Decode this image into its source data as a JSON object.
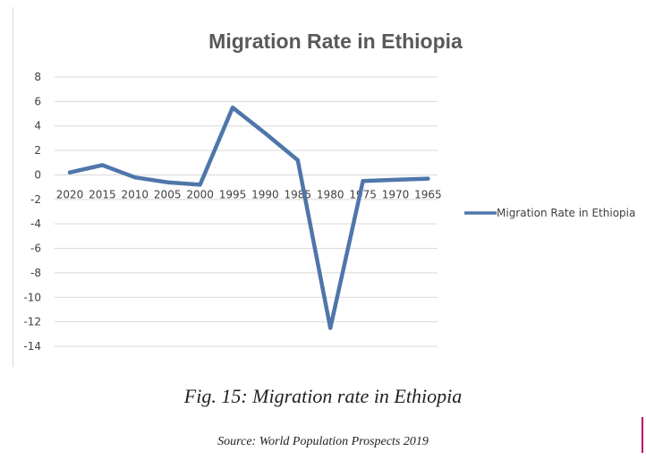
{
  "chart_data": {
    "type": "line",
    "title": "Migration  Rate in Ethiopia",
    "categories": [
      "2020",
      "2015",
      "2010",
      "2005",
      "2000",
      "1995",
      "1990",
      "1985",
      "1980",
      "1975",
      "1970",
      "1965"
    ],
    "series": [
      {
        "name": "Migration Rate in Ethiopia",
        "values": [
          0.2,
          0.8,
          -0.2,
          -0.6,
          -0.8,
          5.5,
          3.4,
          1.2,
          -12.5,
          -0.5,
          -0.4,
          -0.3
        ]
      }
    ],
    "y_ticks": [
      "8",
      "6",
      "4",
      "2",
      "0",
      "-2",
      "-4",
      "-6",
      "-8",
      "-10",
      "-12",
      "-14"
    ],
    "ylim": [
      -14,
      8
    ],
    "ytick_step": 2,
    "xlabel": "",
    "ylabel": "",
    "grid": true,
    "legend_position": "right",
    "colors": {
      "series": "#4f76aa",
      "grid": "#d9d9d9",
      "text": "#404040",
      "title": "#595959"
    }
  },
  "figure": {
    "caption": "Fig. 15: Migration rate in Ethiopia",
    "source": "Source:  World Population Prospects 2019"
  }
}
